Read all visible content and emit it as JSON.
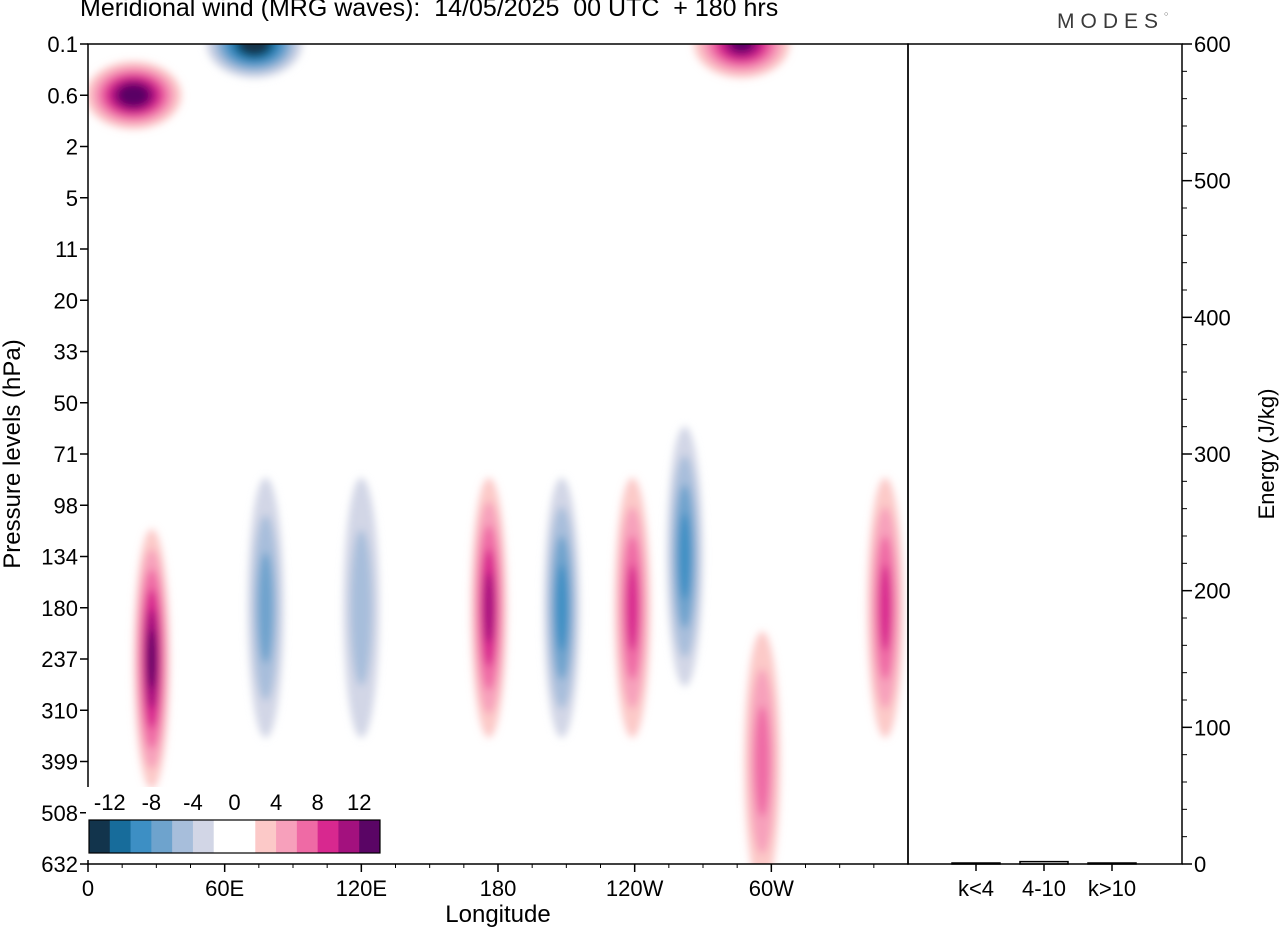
{
  "title": "Meridional wind (MRG waves):  14/05/2025  00 UTC  + 180 hrs",
  "logo": "MODES",
  "chart_data": [
    {
      "type": "heatmap",
      "variable": "Meridional wind (MRG waves)",
      "xlabel": "Longitude",
      "ylabel": "Pressure levels (hPa)",
      "x_ticks": [
        "0",
        "60E",
        "120E",
        "180",
        "120W",
        "60W"
      ],
      "x_range": [
        0,
        360
      ],
      "y_ticks": [
        "0.1",
        "0.6",
        "2",
        "5",
        "11",
        "20",
        "33",
        "50",
        "71",
        "98",
        "134",
        "180",
        "237",
        "310",
        "399",
        "508",
        "632"
      ],
      "colorbar": {
        "labels": [
          "-12",
          "-8",
          "-4",
          "0",
          "4",
          "8",
          "12"
        ],
        "levels": [
          -14,
          -12,
          -10,
          -8,
          -6,
          -4,
          -2,
          0,
          2,
          4,
          6,
          8,
          10,
          12,
          14
        ],
        "colors": [
          "#12344c",
          "#176c9b",
          "#3d8fc4",
          "#6ea3cd",
          "#a7bedb",
          "#d2d6e6",
          "#ffffff",
          "#ffffff",
          "#fcc9c8",
          "#f7a0bb",
          "#ef6aa5",
          "#d8288f",
          "#a3117e",
          "#5a0565"
        ]
      },
      "features": [
        {
          "sign": "positive",
          "lon": 28,
          "level": "237",
          "peak": 11
        },
        {
          "sign": "negative",
          "lon": 78,
          "level": "180",
          "peak": -5
        },
        {
          "sign": "negative",
          "lon": 120,
          "level": "180",
          "peak": -4
        },
        {
          "sign": "positive",
          "lon": 176,
          "level": "180",
          "peak": 9
        },
        {
          "sign": "negative",
          "lon": 208,
          "level": "180",
          "peak": -7
        },
        {
          "sign": "positive",
          "lon": 239,
          "level": "180",
          "peak": 7
        },
        {
          "sign": "negative",
          "lon": 262,
          "level": "134",
          "peak": -7
        },
        {
          "sign": "positive",
          "lon": 296,
          "level": "399",
          "peak": 5
        },
        {
          "sign": "positive",
          "lon": 350,
          "level": "180",
          "peak": 7
        },
        {
          "sign": "positive",
          "lon": 20,
          "level": "0.6",
          "peak": 14
        },
        {
          "sign": "negative",
          "lon": 73,
          "level": "0.1",
          "peak": -13
        },
        {
          "sign": "positive",
          "lon": 287,
          "level": "0.1",
          "peak": 12
        }
      ]
    },
    {
      "type": "bar",
      "ylabel": "Energy (J/kg)",
      "ylim": [
        0,
        600
      ],
      "y_ticks": [
        "0",
        "100",
        "200",
        "300",
        "400",
        "500",
        "600"
      ],
      "categories": [
        "k<4",
        "4-10",
        "k>10"
      ],
      "values": [
        0,
        1,
        0
      ]
    }
  ]
}
